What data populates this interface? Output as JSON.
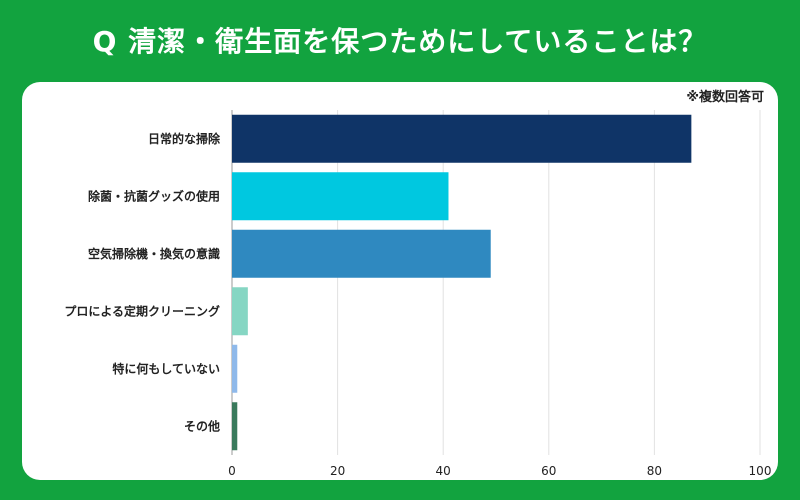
{
  "title": "Q 清潔・衛生面を保つためにしていることは？",
  "note": "※複数回答可",
  "chart_data": {
    "type": "bar",
    "orientation": "horizontal",
    "categories": [
      "日常的な掃除",
      "除菌・抗菌グッズの使用",
      "空気掃除機・換気の意識",
      "プロによる定期クリーニング",
      "特に何もしていない",
      "その他"
    ],
    "values": [
      87,
      41,
      49,
      3,
      1,
      1
    ],
    "colors": [
      "#0f3467",
      "#00c8e0",
      "#2f89c0",
      "#86d6c3",
      "#8fb9ea",
      "#3a7a5c"
    ],
    "xlim": [
      0,
      100
    ],
    "xticks": [
      0,
      20,
      40,
      60,
      80,
      100
    ],
    "grid": true
  }
}
